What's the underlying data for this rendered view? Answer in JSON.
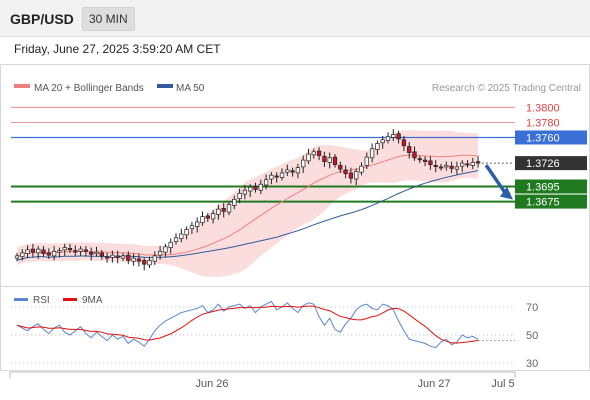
{
  "header": {
    "symbol": "GBP/USD",
    "timeframe": "30 MIN"
  },
  "datetime": "Friday, June 27, 2025 3:59:20 AM CET",
  "legend": {
    "items": [
      {
        "label": "MA 20 + Bollinger Bands",
        "color": "#f08080"
      },
      {
        "label": "MA 50",
        "color": "#2f5b9e"
      }
    ],
    "source": "Research © 2025 Trading Central"
  },
  "colors": {
    "resistance": "#e04040",
    "pivot": "#3a6fd8",
    "support": "#1f7a1f",
    "current": "#333333",
    "arrow": "#2a5fa8",
    "bull": "#ffffff",
    "bear": "#c0192b"
  },
  "chart_data": [
    {
      "type": "candlestick",
      "title": "GBP/USD 30 MIN",
      "x_ticks": [
        "Jun 26",
        "Jun 27",
        "Jul 5"
      ],
      "ylim": [
        1.3575,
        1.3815
      ],
      "levels": [
        {
          "value": 1.38,
          "label": "1.3800",
          "kind": "resistance"
        },
        {
          "value": 1.378,
          "label": "1.3780",
          "kind": "resistance"
        },
        {
          "value": 1.376,
          "label": "1.3760",
          "kind": "pivot"
        },
        {
          "value": 1.3726,
          "label": "1.3726",
          "kind": "current"
        },
        {
          "value": 1.3695,
          "label": "1.3695",
          "kind": "support"
        },
        {
          "value": 1.3675,
          "label": "1.3675",
          "kind": "support"
        }
      ],
      "closes": [
        1.3603,
        1.3607,
        1.3611,
        1.3608,
        1.3612,
        1.3606,
        1.3604,
        1.3609,
        1.361,
        1.3614,
        1.3611,
        1.3608,
        1.3612,
        1.3609,
        1.3605,
        1.3608,
        1.3603,
        1.36,
        1.3604,
        1.3601,
        1.3603,
        1.3597,
        1.36,
        1.3596,
        1.3592,
        1.3597,
        1.3603,
        1.3609,
        1.3615,
        1.3621,
        1.3627,
        1.3632,
        1.3638,
        1.3643,
        1.3648,
        1.3655,
        1.3653,
        1.3659,
        1.3665,
        1.3662,
        1.3671,
        1.3678,
        1.3686,
        1.369,
        1.3694,
        1.3691,
        1.3698,
        1.3704,
        1.371,
        1.3708,
        1.3713,
        1.3717,
        1.3714,
        1.372,
        1.373,
        1.3738,
        1.3741,
        1.3736,
        1.3728,
        1.3733,
        1.3724,
        1.3718,
        1.3712,
        1.3706,
        1.3715,
        1.3722,
        1.3734,
        1.3745,
        1.3752,
        1.3757,
        1.3761,
        1.3764,
        1.3758,
        1.3749,
        1.374,
        1.3733,
        1.3731,
        1.3728,
        1.3724,
        1.3722,
        1.372,
        1.3723,
        1.3719,
        1.3721,
        1.3726,
        1.3724,
        1.3727,
        1.3726
      ],
      "ma20_style": "MA 20 + Bollinger Bands",
      "ma50_style": "MA 50"
    },
    {
      "type": "line",
      "title": "RSI",
      "series": [
        {
          "name": "RSI",
          "color": "#5b86d6"
        },
        {
          "name": "9MA",
          "color": "#e01010"
        }
      ],
      "y_ticks": [
        70,
        50,
        30
      ],
      "ylim": [
        25,
        80
      ],
      "rsi": [
        57,
        55,
        53,
        56,
        58,
        54,
        51,
        55,
        57,
        52,
        50,
        53,
        56,
        51,
        48,
        52,
        49,
        46,
        50,
        47,
        49,
        44,
        47,
        45,
        42,
        47,
        53,
        57,
        60,
        62,
        64,
        66,
        67,
        68,
        69,
        71,
        66,
        68,
        72,
        67,
        70,
        71,
        72,
        69,
        71,
        66,
        70,
        72,
        74,
        68,
        70,
        73,
        69,
        66,
        71,
        73,
        72,
        63,
        57,
        62,
        54,
        52,
        58,
        62,
        68,
        71,
        72,
        69,
        68,
        72,
        71,
        68,
        60,
        53,
        47,
        46,
        45,
        44,
        42,
        41,
        45,
        47,
        43,
        45,
        50,
        48,
        49,
        47
      ]
    }
  ],
  "rsi_panel": {
    "rsi_label": "RSI",
    "ma_label": "9MA"
  }
}
